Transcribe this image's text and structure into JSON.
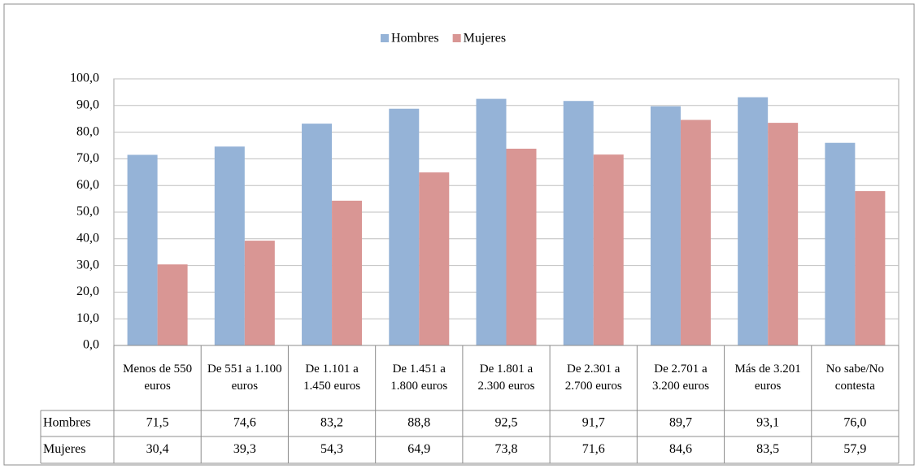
{
  "chart_data": {
    "type": "bar",
    "categories": [
      "Menos de 550 euros",
      "De 551 a 1.100 euros",
      "De 1.101 a 1.450 euros",
      "De 1.451 a 1.800 euros",
      "De 1.801 a 2.300 euros",
      "De 2.301 a 2.700 euros",
      "De 2.701 a 3.200 euros",
      "Más de 3.201 euros",
      "No sabe/No contesta"
    ],
    "series": [
      {
        "name": "Hombres",
        "color": "#95b3d7",
        "values": [
          71.5,
          74.6,
          83.2,
          88.8,
          92.5,
          91.7,
          89.7,
          93.1,
          76.0
        ],
        "value_labels": [
          "71,5",
          "74,6",
          "83,2",
          "88,8",
          "92,5",
          "91,7",
          "89,7",
          "93,1",
          "76,0"
        ]
      },
      {
        "name": "Mujeres",
        "color": "#d99694",
        "values": [
          30.4,
          39.3,
          54.3,
          64.9,
          73.8,
          71.6,
          84.6,
          83.5,
          57.9
        ],
        "value_labels": [
          "30,4",
          "39,3",
          "54,3",
          "64,9",
          "73,8",
          "71,6",
          "84,6",
          "83,5",
          "57,9"
        ]
      }
    ],
    "ylim": [
      0,
      100
    ],
    "yticks": [
      {
        "value": 0,
        "label": "0,0"
      },
      {
        "value": 10,
        "label": "10,0"
      },
      {
        "value": 20,
        "label": "20,0"
      },
      {
        "value": 30,
        "label": "30,0"
      },
      {
        "value": 40,
        "label": "40,0"
      },
      {
        "value": 50,
        "label": "50,0"
      },
      {
        "value": 60,
        "label": "60,0"
      },
      {
        "value": 70,
        "label": "70,0"
      },
      {
        "value": 80,
        "label": "80,0"
      },
      {
        "value": 90,
        "label": "90,0"
      },
      {
        "value": 100,
        "label": "100,0"
      }
    ],
    "grid": true,
    "legend": "top"
  }
}
